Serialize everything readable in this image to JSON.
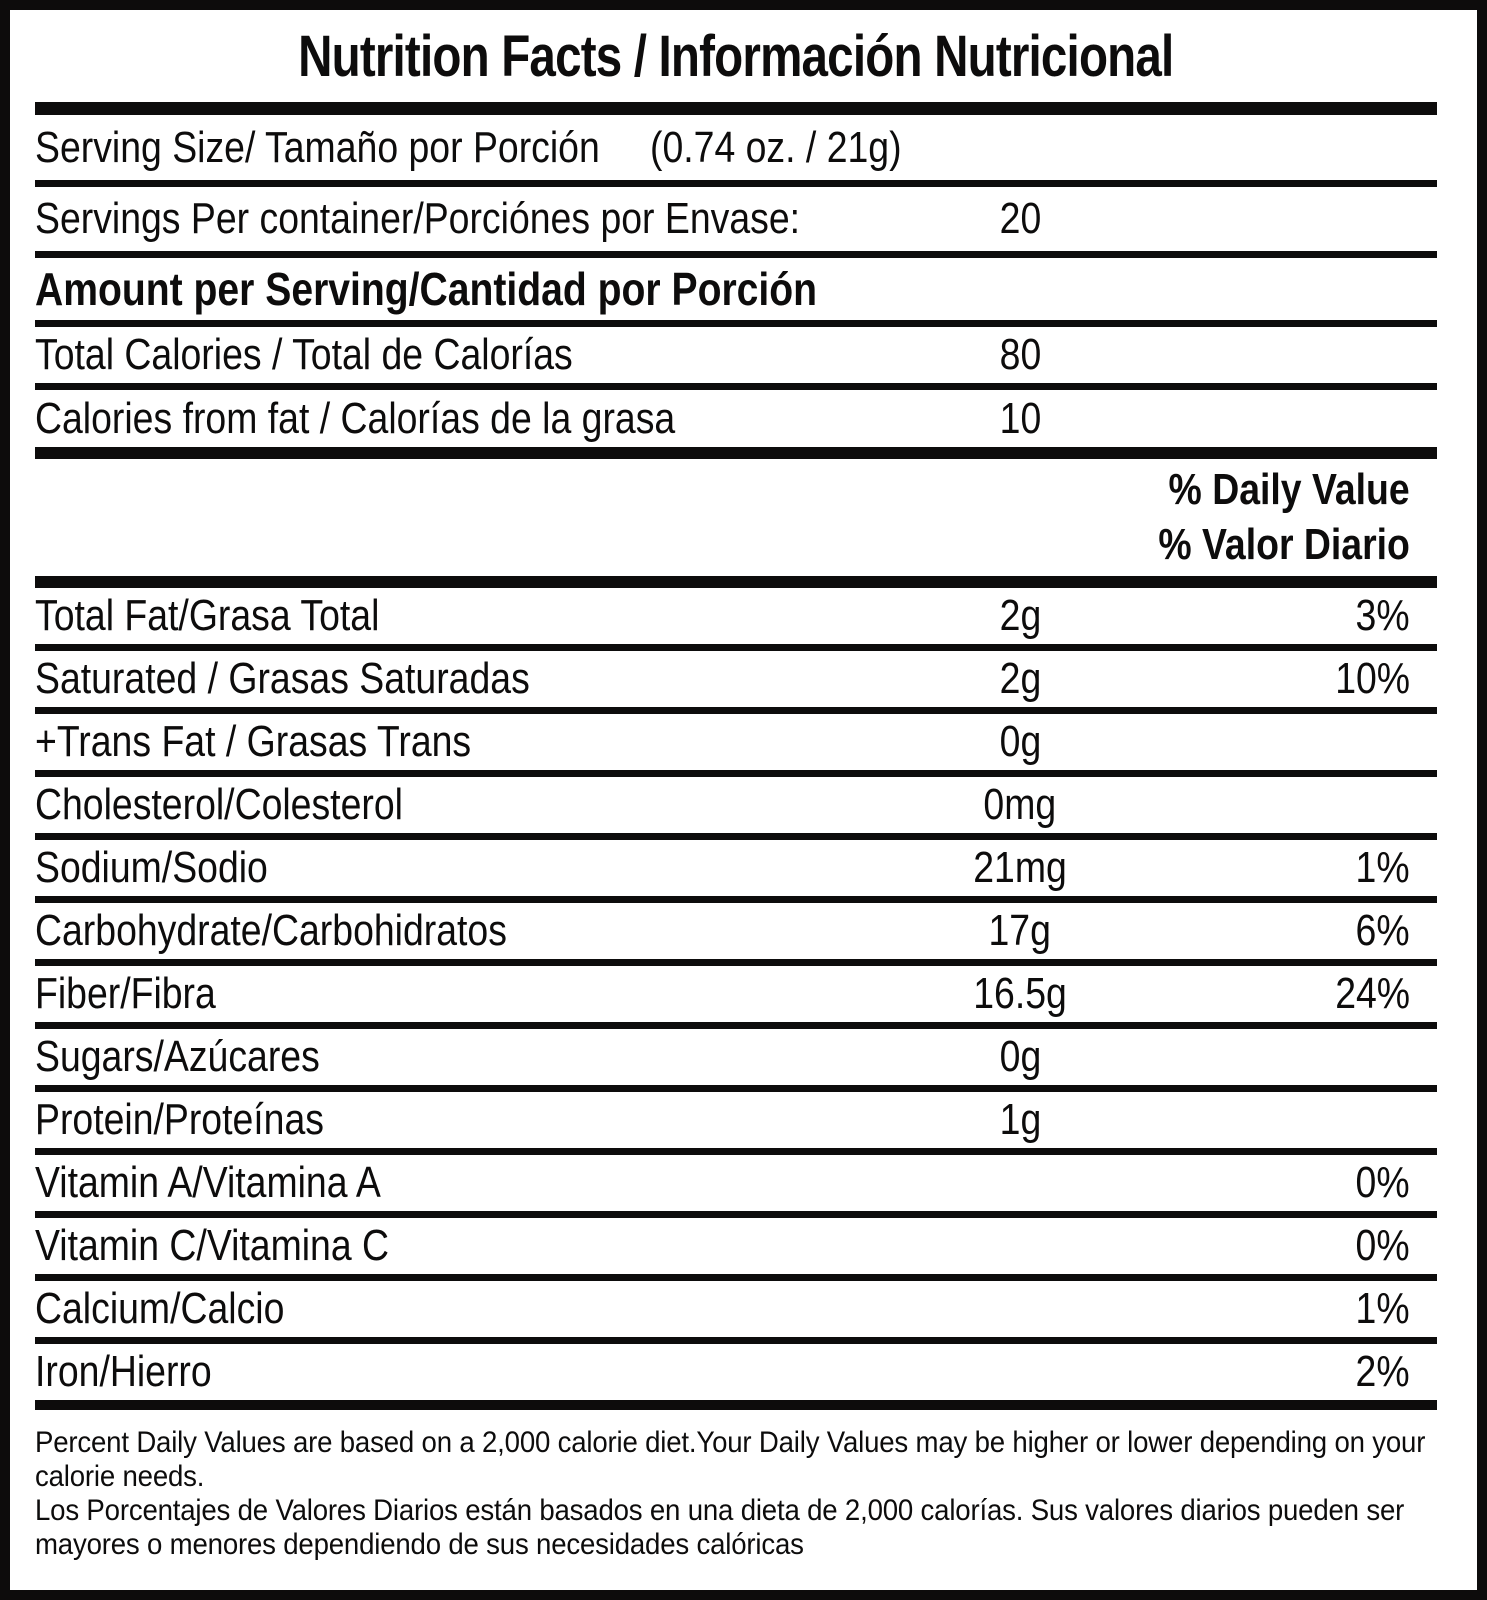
{
  "label": {
    "title": "Nutrition Facts / Información Nutricional",
    "serving_size": {
      "label": "Serving Size/ Tamaño por Porción",
      "value": "(0.74 oz. / 21g)"
    },
    "servings_per_container": {
      "label": "Servings Per container/Porciónes por Envase:",
      "value": "20"
    },
    "amount_per_serving_header": "Amount per Serving/Cantidad por Porción",
    "calories": [
      {
        "label": "Total Calories / Total de Calorías",
        "value": "80"
      },
      {
        "label": "Calories from fat / Calorías de la grasa",
        "value": "10"
      }
    ],
    "daily_value_header_en": "% Daily Value",
    "daily_value_header_es": "% Valor Diario",
    "nutrients": [
      {
        "label": "Total Fat/Grasa Total",
        "amount": "2g",
        "dv": "3%"
      },
      {
        "label": "Saturated / Grasas Saturadas",
        "amount": "2g",
        "dv": "10%"
      },
      {
        "label": "+Trans Fat / Grasas Trans",
        "amount": "0g",
        "dv": ""
      },
      {
        "label": "Cholesterol/Colesterol",
        "amount": "0mg",
        "dv": ""
      },
      {
        "label": "Sodium/Sodio",
        "amount": "21mg",
        "dv": "1%"
      },
      {
        "label": "Carbohydrate/Carbohidratos",
        "amount": "17g",
        "dv": "6%"
      },
      {
        "label": "Fiber/Fibra",
        "amount": "16.5g",
        "dv": "24%"
      },
      {
        "label": "Sugars/Azúcares",
        "amount": "0g",
        "dv": ""
      },
      {
        "label": "Protein/Proteínas",
        "amount": "1g",
        "dv": ""
      },
      {
        "label": "Vitamin A/Vitamina A",
        "amount": "",
        "dv": "0%"
      },
      {
        "label": "Vitamin C/Vitamina C",
        "amount": "",
        "dv": "0%"
      },
      {
        "label": "Calcium/Calcio",
        "amount": "",
        "dv": "1%"
      },
      {
        "label": "Iron/Hierro",
        "amount": "",
        "dv": "2%"
      }
    ],
    "footnote_en": "Percent Daily Values are based on a 2,000 calorie diet.Your Daily Values may be higher or lower depending on your calorie needs.",
    "footnote_es": "Los Porcentajes de Valores Diarios están basados en una dieta de 2,000 calorías. Sus valores diarios pueden ser mayores o menores dependiendo de sus necesidades calóricas"
  },
  "colors": {
    "ink": "#0d0c0c",
    "background": "#ffffff"
  }
}
